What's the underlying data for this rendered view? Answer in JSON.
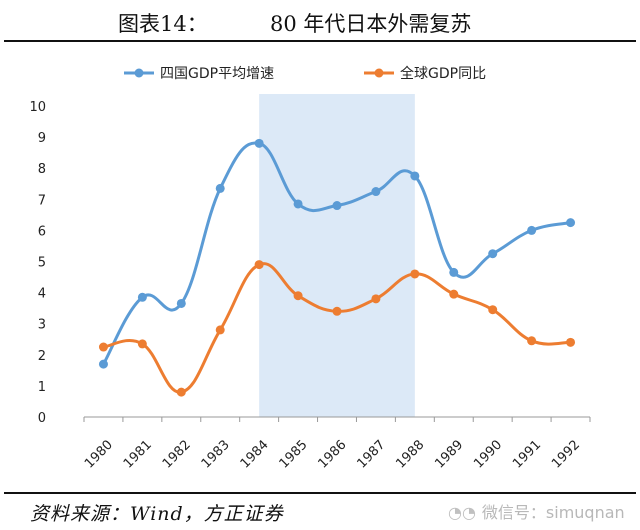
{
  "figure": {
    "label": "图表14：",
    "title": "80 年代日本外需复苏"
  },
  "source": "资料来源：Wind，方正证券",
  "watermark": "微信号：simuqnan",
  "chart_data": {
    "type": "line",
    "categories": [
      "1980",
      "1981",
      "1982",
      "1983",
      "1984",
      "1985",
      "1986",
      "1987",
      "1988",
      "1989",
      "1990",
      "1991",
      "1992"
    ],
    "series": [
      {
        "name": "四国GDP平均增速",
        "color": "#5b9bd5",
        "values": [
          1.7,
          3.85,
          3.65,
          7.35,
          8.8,
          6.85,
          6.8,
          7.25,
          7.75,
          4.65,
          5.25,
          6.0,
          6.25
        ]
      },
      {
        "name": "全球GDP同比",
        "color": "#ed7d31",
        "values": [
          2.25,
          2.35,
          0.8,
          2.8,
          4.9,
          3.9,
          3.4,
          3.8,
          4.6,
          3.95,
          3.45,
          2.45,
          2.4
        ]
      }
    ],
    "ylim": [
      0,
      10
    ],
    "yticks": [
      0,
      1,
      2,
      3,
      4,
      5,
      6,
      7,
      8,
      9,
      10
    ],
    "highlight_range": [
      "1984",
      "1988"
    ],
    "highlight_color": "#dce9f7",
    "legend_position": "top",
    "grid": false,
    "smooth": true
  }
}
